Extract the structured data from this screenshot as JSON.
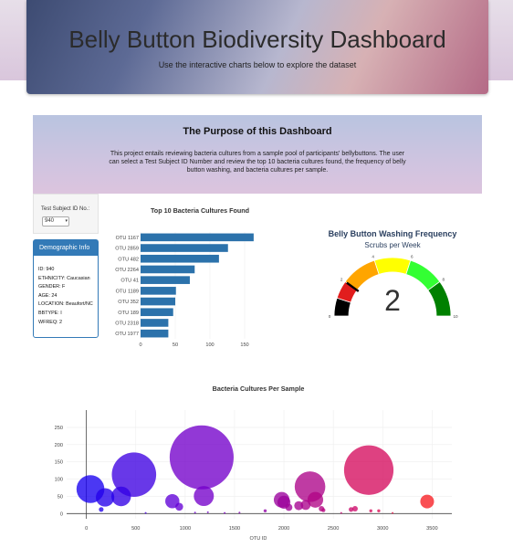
{
  "header": {
    "title": "Belly Button Biodiversity Dashboard",
    "subtitle": "Use the interactive charts below to explore the dataset"
  },
  "purpose": {
    "heading": "The Purpose of this Dashboard",
    "body": "This project entails reviewing bacteria cultures from a sample pool of participants' bellybuttons. The user can select a Test Subject ID Number and review the top 10 bacteria cultures found, the frequency of belly button washing, and bacteria cultures per sample."
  },
  "selector": {
    "label": "Test Subject ID No.:",
    "selected": "940"
  },
  "demographics": {
    "heading": "Demographic Info",
    "rows": [
      "ID: 940",
      "ETHNICITY: Caucasian",
      "GENDER: F",
      "AGE: 24",
      "LOCATION: Beaufort/NC",
      "BBTYPE: I",
      "WFREQ: 2"
    ]
  },
  "colors": {
    "bar": "#2c72ab",
    "panel": "#337ab7",
    "needle": "#000000"
  },
  "chart_data": [
    {
      "type": "bar",
      "orientation": "horizontal",
      "title": "Top 10 Bacteria Cultures Found",
      "categories": [
        "OTU 1167",
        "OTU 2859",
        "OTU 482",
        "OTU 2264",
        "OTU 41",
        "OTU 1189",
        "OTU 352",
        "OTU 189",
        "OTU 2318",
        "OTU 1977"
      ],
      "values": [
        163,
        126,
        113,
        78,
        71,
        51,
        50,
        47,
        40,
        40
      ],
      "xlim": [
        0,
        175
      ],
      "xticks": [
        0,
        50,
        100,
        150
      ]
    },
    {
      "type": "gauge",
      "title": "Belly Button Washing Frequency",
      "subtitle": "Scrubs per Week",
      "value": 2,
      "range": [
        0,
        10
      ],
      "ticks": [
        0,
        2,
        4,
        6,
        8,
        10
      ],
      "bands": [
        {
          "from": 0,
          "to": 1,
          "color": "#000000"
        },
        {
          "from": 1,
          "to": 2,
          "color": "#e11d1d"
        },
        {
          "from": 2,
          "to": 4,
          "color": "#ffa500"
        },
        {
          "from": 4,
          "to": 6,
          "color": "#ffff00"
        },
        {
          "from": 6,
          "to": 8,
          "color": "#33ff33"
        },
        {
          "from": 8,
          "to": 10,
          "color": "#008000"
        }
      ]
    },
    {
      "type": "scatter",
      "title": "Bacteria Cultures Per Sample",
      "xlabel": "OTU ID",
      "ylabel": "",
      "xlim": [
        -200,
        3700
      ],
      "ylim": [
        -15,
        300
      ],
      "xticks": [
        0,
        500,
        1000,
        1500,
        2000,
        2500,
        3000,
        3500
      ],
      "yticks": [
        0,
        50,
        100,
        150,
        200,
        250
      ],
      "marker_size": "value",
      "points": [
        {
          "x": 41,
          "y": 71
        },
        {
          "x": 189,
          "y": 47
        },
        {
          "x": 352,
          "y": 50
        },
        {
          "x": 482,
          "y": 113
        },
        {
          "x": 1167,
          "y": 163
        },
        {
          "x": 1189,
          "y": 51
        },
        {
          "x": 1977,
          "y": 40
        },
        {
          "x": 2264,
          "y": 78
        },
        {
          "x": 2318,
          "y": 40
        },
        {
          "x": 2859,
          "y": 126
        },
        {
          "x": 3450,
          "y": 35
        },
        {
          "x": 870,
          "y": 36
        },
        {
          "x": 940,
          "y": 20
        },
        {
          "x": 2000,
          "y": 33
        },
        {
          "x": 2050,
          "y": 18
        },
        {
          "x": 2150,
          "y": 23
        },
        {
          "x": 2220,
          "y": 25
        },
        {
          "x": 2380,
          "y": 14
        },
        {
          "x": 2400,
          "y": 10
        },
        {
          "x": 1810,
          "y": 8
        },
        {
          "x": 2680,
          "y": 12
        },
        {
          "x": 2720,
          "y": 14
        },
        {
          "x": 2880,
          "y": 8
        },
        {
          "x": 2960,
          "y": 8
        },
        {
          "x": 150,
          "y": 12
        },
        {
          "x": 1100,
          "y": 3
        },
        {
          "x": 1230,
          "y": 4
        },
        {
          "x": 600,
          "y": 2
        },
        {
          "x": 1400,
          "y": 2
        },
        {
          "x": 1550,
          "y": 3
        },
        {
          "x": 2580,
          "y": 2
        },
        {
          "x": 3100,
          "y": 2
        }
      ]
    }
  ]
}
